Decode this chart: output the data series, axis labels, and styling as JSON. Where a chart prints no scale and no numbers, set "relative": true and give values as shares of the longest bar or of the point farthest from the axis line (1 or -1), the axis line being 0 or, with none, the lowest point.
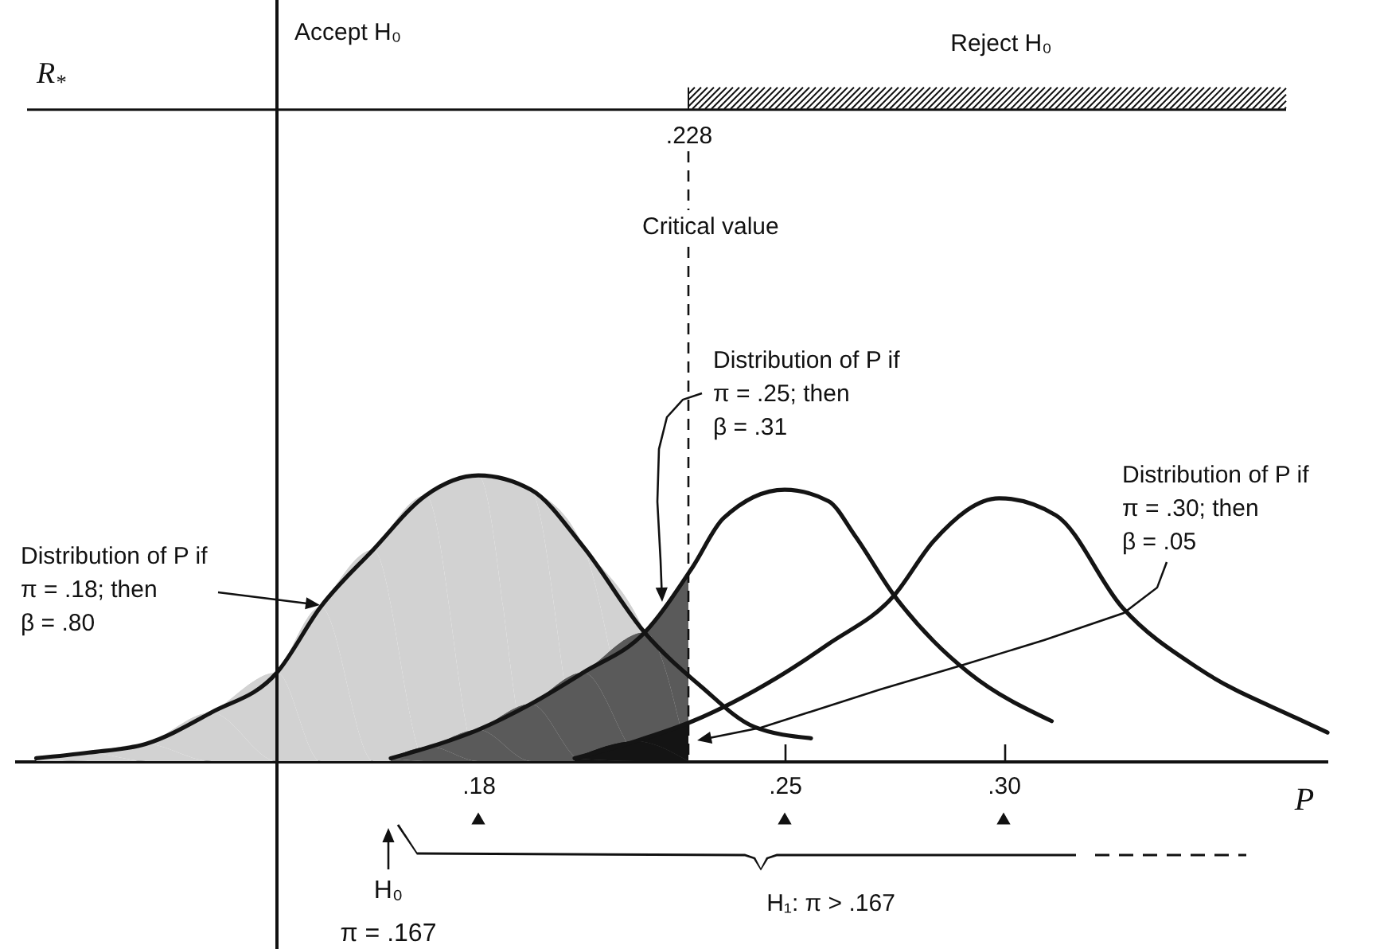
{
  "chart_data": {
    "type": "line",
    "relative": true,
    "xlabel": "P",
    "xlim": [
      0.074,
      0.374
    ],
    "xticks": [
      {
        "value": 0.18,
        "label": ".18"
      },
      {
        "value": 0.25,
        "label": ".25"
      },
      {
        "value": 0.3,
        "label": ".30"
      }
    ],
    "series": [
      {
        "type": "area",
        "color": "#d2d2d2",
        "x": [
          0.079,
          0.091,
          0.104,
          0.119,
          0.134,
          0.144,
          0.156,
          0.168,
          0.18,
          0.192,
          0.204,
          0.218,
          0.228
        ],
        "values": [
          0.01,
          0.03,
          0.06,
          0.17,
          0.31,
          0.54,
          0.74,
          0.93,
          1,
          0.95,
          0.75,
          0.45,
          0.3
        ]
      },
      {
        "type": "area",
        "color": "#5a5a5a",
        "x": [
          0.16,
          0.169,
          0.18,
          0.192,
          0.204,
          0.218,
          0.228
        ],
        "values": [
          0.01,
          0.05,
          0.11,
          0.2,
          0.31,
          0.45,
          0.66
        ]
      },
      {
        "type": "area",
        "color": "#141414",
        "x": [
          0.202,
          0.216,
          0.228
        ],
        "values": [
          0.01,
          0.07,
          0.13
        ]
      },
      {
        "type": "line",
        "color": "#141414",
        "x": [
          0.079,
          0.091,
          0.104,
          0.119,
          0.134,
          0.144,
          0.156,
          0.168,
          0.18,
          0.192,
          0.204,
          0.218,
          0.231,
          0.243,
          0.256
        ],
        "values": [
          0.01,
          0.03,
          0.06,
          0.17,
          0.31,
          0.54,
          0.74,
          0.93,
          1,
          0.95,
          0.75,
          0.45,
          0.26,
          0.12,
          0.08
        ]
      },
      {
        "type": "line",
        "color": "#141414",
        "x": [
          0.16,
          0.169,
          0.18,
          0.192,
          0.204,
          0.218,
          0.229,
          0.236,
          0.25,
          0.26,
          0.266,
          0.275,
          0.284,
          0.292,
          0.311
        ],
        "values": [
          0.01,
          0.05,
          0.11,
          0.2,
          0.31,
          0.45,
          0.68,
          0.85,
          0.95,
          0.91,
          0.79,
          0.58,
          0.42,
          0.31,
          0.14
        ]
      },
      {
        "type": "line",
        "color": "#141414",
        "x": [
          0.202,
          0.216,
          0.229,
          0.248,
          0.26,
          0.275,
          0.284,
          0.299,
          0.312,
          0.327,
          0.345,
          0.367,
          0.374
        ],
        "values": [
          0.01,
          0.07,
          0.14,
          0.29,
          0.41,
          0.58,
          0.77,
          0.92,
          0.86,
          0.54,
          0.32,
          0.15,
          0.1
        ]
      }
    ],
    "ref_lines": [
      {
        "axis": "x",
        "value": 0.134,
        "line_style": "solid"
      },
      {
        "axis": "x",
        "value": 0.228,
        "label": "Critical value",
        "line_style": "dashed"
      },
      {
        "axis": "y",
        "value": 2.28,
        "label": "R$_{*}$",
        "line_style": "solid"
      }
    ],
    "annotations": [
      "Accept H₀",
      "Reject H₀",
      ".228",
      "Distribution of P if\nπ = .18; then\nβ = .80",
      "Distribution of P if\nπ = .25; then\nβ = .31",
      "Distribution of P if\nπ = .30; then\nβ = .05",
      "H₀\nπ = .167",
      "H₁: π > .167"
    ]
  }
}
